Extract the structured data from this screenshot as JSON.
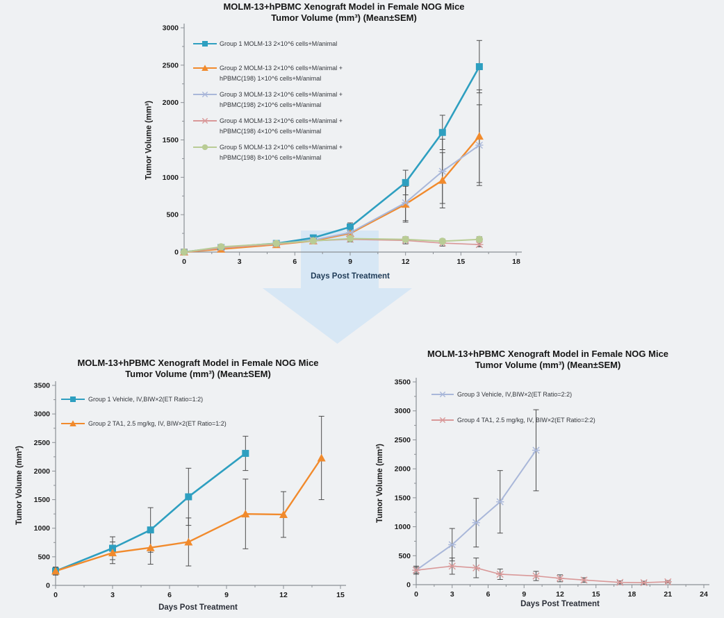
{
  "page": {
    "background": "#eff1f3"
  },
  "arrow": {
    "name": "downward transition arrow",
    "color": "#cfe3f5"
  },
  "charts": [
    {
      "title_line1": "MOLM-13+hPBMC Xenograft Model in Female NOG Mice",
      "title_line2": "Tumor Volume (mm³) (Mean±SEM)",
      "xlabel": "Days Post Treatment",
      "ylabel": "Tumor Volume (mm³)",
      "chart_data": {
        "type": "line",
        "xlim": [
          0,
          18
        ],
        "ylim": [
          0,
          3000
        ],
        "xticks": [
          0,
          3,
          6,
          9,
          12,
          15,
          18
        ],
        "yticks": [
          0,
          500,
          1000,
          1500,
          2000,
          2500,
          3000
        ],
        "x_minor_step": 1.5,
        "y_minor_step": 250,
        "grid": false,
        "legend_position": "top-left-inside",
        "series": [
          {
            "name": "Group 1 MOLM-13  2×10^6 cells+M/animal",
            "legend_lines": [
              "Group 1 MOLM-13  2×10^6 cells+M/animal"
            ],
            "color": "#2e9fc0",
            "marker": "square",
            "line_width": 2.6,
            "x": [
              0,
              2,
              5,
              7,
              9,
              12,
              14,
              16
            ],
            "y": [
              0,
              60,
              115,
              190,
              335,
              930,
              1600,
              2480
            ],
            "err": [
              5,
              12,
              20,
              30,
              55,
              165,
              230,
              350
            ]
          },
          {
            "name": "Group 2 MOLM-13  2×10^6 cells+M/animal + hPBMC(198) 1×10^6 cells+M/animal",
            "legend_lines": [
              "Group 2 MOLM-13  2×10^6 cells+M/animal +",
              "hPBMC(198) 1×10^6 cells+M/animal"
            ],
            "color": "#f18a2c",
            "marker": "triangle",
            "line_width": 2.4,
            "x": [
              0,
              2,
              5,
              7,
              9,
              12,
              14,
              16
            ],
            "y": [
              0,
              40,
              100,
              150,
              250,
              640,
              960,
              1550
            ],
            "err": [
              5,
              12,
              20,
              30,
              55,
              240,
              370,
              620
            ]
          },
          {
            "name": "Group 3 MOLM-13  2×10^6 cells+M/animal + hPBMC(198) 2×10^6 cells+M/animal",
            "legend_lines": [
              "Group 3 MOLM-13  2×10^6 cells+M/animal +",
              "hPBMC(198) 2×10^6 cells+M/animal"
            ],
            "color": "#a9b7d9",
            "marker": "xstar",
            "line_width": 2,
            "x": [
              0,
              2,
              5,
              7,
              9,
              12,
              14,
              16
            ],
            "y": [
              0,
              55,
              110,
              160,
              260,
              660,
              1080,
              1430
            ],
            "err": [
              5,
              12,
              20,
              30,
              55,
              240,
              430,
              540
            ]
          },
          {
            "name": "Group 4 MOLM-13  2×10^6 cells+M/animal + hPBMC(198) 4×10^6 cells+M/animal",
            "legend_lines": [
              "Group 4 MOLM-13  2×10^6 cells+M/animal +",
              "hPBMC(198) 4×10^6 cells+M/animal"
            ],
            "color": "#d99898",
            "marker": "xstar",
            "line_width": 1.6,
            "x": [
              0,
              2,
              5,
              7,
              9,
              12,
              14,
              16
            ],
            "y": [
              0,
              55,
              105,
              150,
              170,
              155,
              120,
              100
            ],
            "err": [
              5,
              10,
              15,
              25,
              35,
              45,
              40,
              30
            ]
          },
          {
            "name": "Group 5 MOLM-13  2×10^6 cells+M/animal + hPBMC(198) 8×10^6 cells+M/animal",
            "legend_lines": [
              "Group 5 MOLM-13  2×10^6 cells+M/animal +",
              "hPBMC(198) 8×10^6 cells+M/animal"
            ],
            "color": "#b9cc95",
            "marker": "circle",
            "line_width": 2,
            "x": [
              0,
              2,
              5,
              7,
              9,
              12,
              14,
              16
            ],
            "y": [
              0,
              70,
              115,
              150,
              180,
              170,
              145,
              170
            ],
            "err": [
              5,
              10,
              15,
              25,
              35,
              35,
              30,
              35
            ]
          }
        ]
      }
    },
    {
      "title_line1": "MOLM-13+hPBMC Xenograft Model in Female NOG Mice",
      "title_line2": "Tumor Volume (mm³) (Mean±SEM)",
      "xlabel": "Days Post Treatment",
      "ylabel": "Tumor Volume (mm³)",
      "chart_data": {
        "type": "line",
        "xlim": [
          0,
          15
        ],
        "ylim": [
          0,
          3500
        ],
        "xticks": [
          0,
          3,
          6,
          9,
          12,
          15
        ],
        "yticks": [
          0,
          500,
          1000,
          1500,
          2000,
          2500,
          3000,
          3500
        ],
        "x_minor_step": 1.5,
        "y_minor_step": 250,
        "grid": false,
        "legend_position": "top-left-inside",
        "series": [
          {
            "name": "Group 1 Vehicle, IV,BIW×2(ET Ratio=1:2)",
            "legend_lines": [
              "Group 1 Vehicle, IV,BIW×2(ET Ratio=1:2)"
            ],
            "color": "#2e9fc0",
            "marker": "square",
            "line_width": 2.6,
            "x": [
              0,
              3,
              5,
              7,
              10
            ],
            "y": [
              250,
              650,
              970,
              1550,
              2310
            ],
            "err": [
              70,
              200,
              390,
              500,
              300
            ]
          },
          {
            "name": "Group 2 TA1, 2.5 mg/kg, IV, BIW×2(ET Ratio=1:2)",
            "legend_lines": [
              "Group 2 TA1, 2.5 mg/kg, IV, BIW×2(ET Ratio=1:2)"
            ],
            "color": "#f18a2c",
            "marker": "triangle",
            "line_width": 2.4,
            "x": [
              0,
              3,
              5,
              7,
              10,
              12,
              14
            ],
            "y": [
              250,
              570,
              660,
              760,
              1250,
              1240,
              2230
            ],
            "err": [
              60,
              190,
              290,
              420,
              610,
              400,
              730
            ]
          }
        ]
      }
    },
    {
      "title_line1": "MOLM-13+hPBMC Xenograft Model in Female NOG Mice",
      "title_line2": "Tumor Volume (mm³) (Mean±SEM)",
      "xlabel": "Days Post Treatment",
      "ylabel": "Tumor Volume (mm³)",
      "chart_data": {
        "type": "line",
        "xlim": [
          0,
          24
        ],
        "ylim": [
          0,
          3500
        ],
        "xticks": [
          0,
          3,
          6,
          9,
          12,
          15,
          18,
          21,
          24
        ],
        "yticks": [
          0,
          500,
          1000,
          1500,
          2000,
          2500,
          3000,
          3500
        ],
        "x_minor_step": 1.5,
        "y_minor_step": 250,
        "grid": false,
        "legend_position": "top-left-inside",
        "series": [
          {
            "name": "Group 3 Vehicle, IV,BIW×2(ET Ratio=2:2)",
            "legend_lines": [
              "Group 3 Vehicle, IV,BIW×2(ET Ratio=2:2)"
            ],
            "color": "#a9b7d9",
            "marker": "xstar",
            "line_width": 2,
            "x": [
              0,
              3,
              5,
              7,
              10
            ],
            "y": [
              250,
              690,
              1070,
              1430,
              2320
            ],
            "err": [
              70,
              280,
              420,
              540,
              700
            ]
          },
          {
            "name": "Group 4 TA1, 2.5 mg/kg, IV, BIW×2(ET Ratio=2:2)",
            "legend_lines": [
              "Group 4 TA1, 2.5 mg/kg, IV, BIW×2(ET Ratio=2:2)"
            ],
            "color": "#d99898",
            "marker": "xstar",
            "line_width": 1.6,
            "x": [
              0,
              3,
              5,
              7,
              10,
              12,
              14,
              17,
              19,
              21
            ],
            "y": [
              250,
              320,
              290,
              180,
              150,
              110,
              80,
              40,
              35,
              50
            ],
            "err": [
              50,
              140,
              170,
              90,
              80,
              60,
              40,
              25,
              25,
              20
            ]
          }
        ]
      }
    }
  ]
}
